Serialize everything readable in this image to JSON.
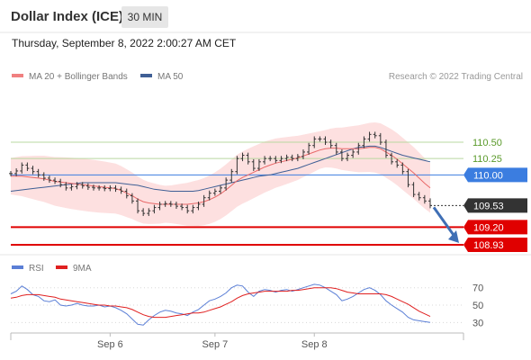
{
  "header": {
    "title": "Dollar Index (ICE)",
    "timeframe": "30 MIN",
    "timestamp": "Thursday, September 8, 2022 2:00:27 AM CET"
  },
  "legend": {
    "main": [
      {
        "label": "MA 20 + Bollinger Bands",
        "color": "#f08080"
      },
      {
        "label": "MA 50",
        "color": "#3f5f95"
      }
    ],
    "rsi": [
      {
        "label": "RSI",
        "color": "#5b7fd6"
      },
      {
        "label": "9MA",
        "color": "#e02020"
      }
    ],
    "credit": "Research © 2022 Trading Central"
  },
  "chart_data": {
    "type": "line",
    "main": {
      "y_range": [
        108.75,
        111.3
      ],
      "levels": [
        {
          "value": 110.5,
          "label": "110.50",
          "kind": "resistance"
        },
        {
          "value": 110.25,
          "label": "110.25",
          "kind": "resistance"
        },
        {
          "value": 110.0,
          "label": "110.00",
          "kind": "pivot"
        },
        {
          "value": 109.53,
          "label": "109.53",
          "kind": "last"
        },
        {
          "value": 109.2,
          "label": "109.20",
          "kind": "support"
        },
        {
          "value": 108.93,
          "label": "108.93",
          "kind": "support"
        }
      ],
      "close": [
        110.02,
        110.06,
        110.15,
        110.1,
        110.05,
        110.0,
        109.95,
        109.92,
        109.9,
        109.85,
        109.8,
        109.82,
        109.85,
        109.83,
        109.81,
        109.8,
        109.8,
        109.79,
        109.8,
        109.78,
        109.75,
        109.68,
        109.6,
        109.45,
        109.41,
        109.45,
        109.5,
        109.55,
        109.56,
        109.55,
        109.52,
        109.5,
        109.45,
        109.5,
        109.55,
        109.65,
        109.72,
        109.75,
        109.8,
        109.92,
        110.05,
        110.25,
        110.3,
        110.2,
        110.1,
        110.2,
        110.25,
        110.25,
        110.22,
        110.25,
        110.27,
        110.25,
        110.28,
        110.35,
        110.45,
        110.55,
        110.55,
        110.5,
        110.45,
        110.35,
        110.25,
        110.3,
        110.35,
        110.45,
        110.55,
        110.62,
        110.6,
        110.5,
        110.3,
        110.2,
        110.15,
        110.05,
        109.85,
        109.7,
        109.65,
        109.6,
        109.53
      ],
      "ma20": [
        109.98,
        109.98,
        109.98,
        109.97,
        109.96,
        109.95,
        109.94,
        109.92,
        109.9,
        109.89,
        109.88,
        109.87,
        109.86,
        109.85,
        109.84,
        109.83,
        109.82,
        109.81,
        109.8,
        109.79,
        109.76,
        109.72,
        109.68,
        109.63,
        109.59,
        109.57,
        109.56,
        109.55,
        109.55,
        109.55,
        109.55,
        109.55,
        109.55,
        109.56,
        109.57,
        109.59,
        109.62,
        109.66,
        109.71,
        109.77,
        109.84,
        109.91,
        109.96,
        110.0,
        110.04,
        110.08,
        110.12,
        110.15,
        110.18,
        110.2,
        110.22,
        110.24,
        110.26,
        110.29,
        110.32,
        110.35,
        110.38,
        110.4,
        110.41,
        110.41,
        110.4,
        110.4,
        110.4,
        110.4,
        110.41,
        110.42,
        110.42,
        110.4,
        110.35,
        110.3,
        110.24,
        110.17,
        110.1,
        110.03,
        109.95,
        109.87,
        109.8
      ],
      "ma50": [
        109.75,
        109.76,
        109.77,
        109.78,
        109.79,
        109.8,
        109.81,
        109.82,
        109.83,
        109.84,
        109.85,
        109.86,
        109.87,
        109.88,
        109.88,
        109.88,
        109.88,
        109.88,
        109.88,
        109.88,
        109.87,
        109.86,
        109.85,
        109.84,
        109.82,
        109.8,
        109.78,
        109.77,
        109.76,
        109.75,
        109.75,
        109.75,
        109.75,
        109.75,
        109.76,
        109.78,
        109.8,
        109.82,
        109.84,
        109.86,
        109.88,
        109.9,
        109.92,
        109.94,
        109.96,
        109.98,
        109.99,
        110.0,
        110.02,
        110.04,
        110.06,
        110.08,
        110.1,
        110.13,
        110.16,
        110.19,
        110.22,
        110.25,
        110.28,
        110.31,
        110.34,
        110.37,
        110.4,
        110.42,
        110.43,
        110.44,
        110.44,
        110.42,
        110.39,
        110.36,
        110.33,
        110.3,
        110.28,
        110.26,
        110.24,
        110.22,
        110.2
      ],
      "projection": [
        109.53,
        108.93
      ]
    },
    "rsi": {
      "y_ticks": [
        70,
        50,
        30
      ],
      "y_range": [
        20,
        78
      ],
      "rsi": [
        63,
        66,
        72,
        68,
        62,
        60,
        55,
        54,
        56,
        50,
        49,
        50,
        52,
        50,
        49,
        49,
        50,
        48,
        49,
        47,
        44,
        40,
        34,
        28,
        27,
        33,
        38,
        42,
        44,
        43,
        41,
        40,
        38,
        42,
        45,
        50,
        55,
        57,
        60,
        64,
        70,
        73,
        72,
        65,
        60,
        66,
        68,
        67,
        65,
        67,
        68,
        66,
        68,
        70,
        72,
        74,
        73,
        70,
        66,
        62,
        55,
        57,
        60,
        64,
        68,
        70,
        67,
        62,
        55,
        50,
        46,
        42,
        36,
        33,
        32,
        31,
        30
      ],
      "ma9": [
        58,
        59,
        61,
        62,
        62,
        62,
        61,
        60,
        59,
        57,
        56,
        55,
        54,
        53,
        52,
        51,
        50,
        50,
        49,
        49,
        48,
        47,
        45,
        42,
        39,
        37,
        36,
        36,
        36,
        37,
        38,
        39,
        40,
        41,
        41,
        42,
        44,
        46,
        48,
        51,
        54,
        58,
        61,
        63,
        64,
        65,
        66,
        66,
        66,
        66,
        66,
        67,
        67,
        68,
        69,
        70,
        70,
        70,
        70,
        69,
        67,
        65,
        64,
        63,
        63,
        63,
        63,
        63,
        62,
        60,
        57,
        54,
        51,
        47,
        43,
        40,
        37
      ],
      "guide": 30
    },
    "x_axis": {
      "labels": [
        {
          "index": 18,
          "text": "Sep 6"
        },
        {
          "index": 37,
          "text": "Sep 7"
        },
        {
          "index": 55,
          "text": "Sep 8"
        }
      ]
    },
    "colors": {
      "bars": "#333333",
      "ma20": "#e86868",
      "ma50": "#3f5f95",
      "band_fill": "#fde0e0",
      "resistance": "#b9d8a0",
      "pivot": "#3b7de0",
      "last": "#333333",
      "support": "#e00000",
      "projection": "#3f6fb5"
    }
  }
}
